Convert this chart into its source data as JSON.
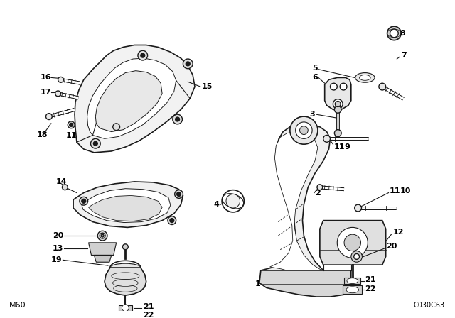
{
  "bg_color": "#ffffff",
  "line_color": "#1a1a1a",
  "bottom_left_label": "M60",
  "bottom_right_label": "C030C63",
  "fig_width": 6.4,
  "fig_height": 4.48,
  "dpi": 100
}
